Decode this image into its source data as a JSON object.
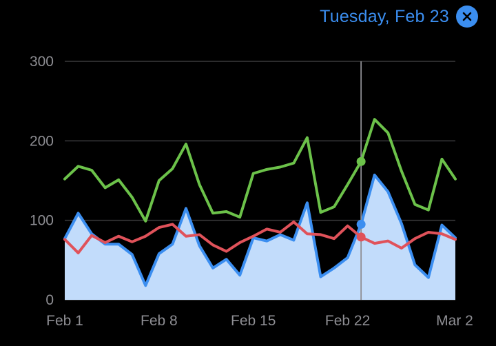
{
  "header": {
    "selected_label": "Tuesday, Feb 23",
    "close_icon": "close-x-circle-icon"
  },
  "colors": {
    "accent": "#3b8ef0",
    "green": "#6cc24a",
    "blue": "#3b8ef0",
    "red": "#e0525a",
    "area": "#c2dcfb",
    "grid": "#3a3a3c",
    "cursor": "#8e8e93"
  },
  "chart_data": {
    "type": "line",
    "x": [
      "Feb 1",
      "Feb 2",
      "Feb 3",
      "Feb 4",
      "Feb 5",
      "Feb 6",
      "Feb 7",
      "Feb 8",
      "Feb 9",
      "Feb 10",
      "Feb 11",
      "Feb 12",
      "Feb 13",
      "Feb 14",
      "Feb 15",
      "Feb 16",
      "Feb 17",
      "Feb 18",
      "Feb 19",
      "Feb 20",
      "Feb 21",
      "Feb 22",
      "Feb 23",
      "Feb 24",
      "Feb 25",
      "Feb 26",
      "Feb 27",
      "Feb 28",
      "Mar 1",
      "Mar 2"
    ],
    "x_tick_labels": [
      "Feb 1",
      "Feb 8",
      "Feb 15",
      "Feb 22",
      "Mar 2"
    ],
    "x_tick_indices": [
      0,
      7,
      14,
      21,
      29
    ],
    "ylim": [
      0,
      300
    ],
    "y_ticks": [
      0,
      100,
      200,
      300
    ],
    "grid": true,
    "selected_index": 22,
    "series": [
      {
        "color": "green",
        "style": "line",
        "values": [
          152,
          168,
          163,
          141,
          151,
          129,
          99,
          150,
          165,
          196,
          145,
          109,
          111,
          104,
          159,
          164,
          167,
          172,
          204,
          110,
          117,
          145,
          174,
          227,
          210,
          162,
          120,
          113,
          177,
          152
        ]
      },
      {
        "color": "blue",
        "style": "area",
        "values": [
          77,
          109,
          83,
          70,
          70,
          57,
          18,
          58,
          70,
          115,
          68,
          40,
          51,
          31,
          78,
          74,
          82,
          75,
          122,
          29,
          40,
          53,
          95,
          157,
          136,
          96,
          44,
          28,
          94,
          78
        ]
      },
      {
        "color": "red",
        "style": "line",
        "values": [
          76,
          59,
          81,
          72,
          80,
          73,
          80,
          91,
          95,
          80,
          82,
          69,
          61,
          72,
          80,
          89,
          85,
          98,
          83,
          82,
          77,
          93,
          79,
          71,
          74,
          65,
          77,
          85,
          83,
          76
        ]
      }
    ]
  }
}
